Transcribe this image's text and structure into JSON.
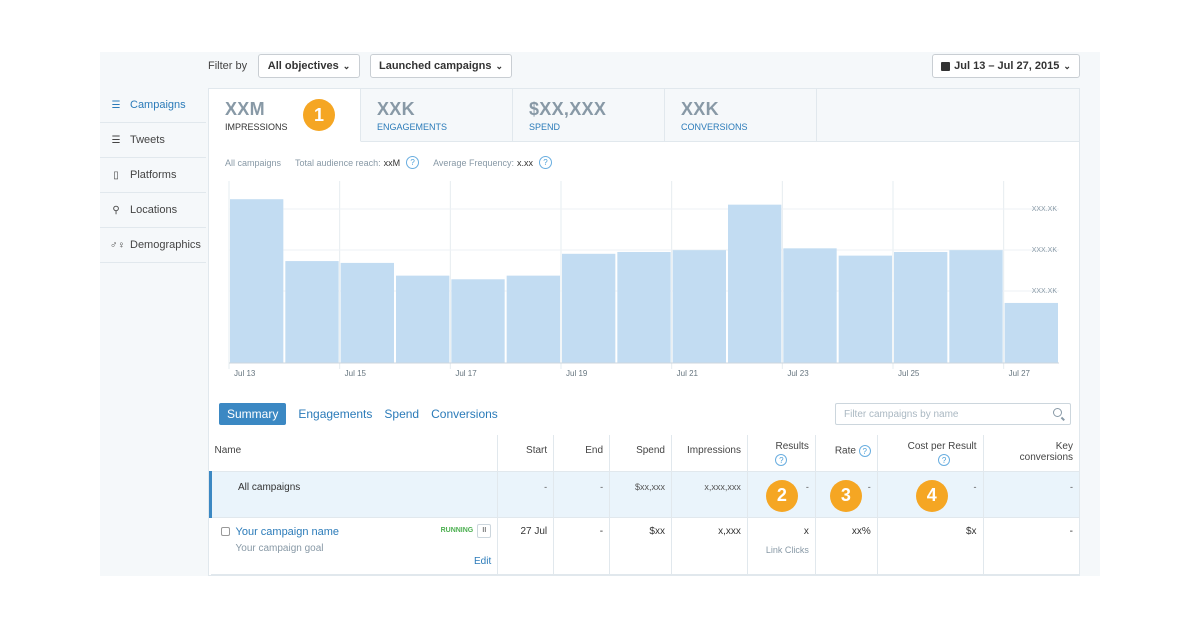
{
  "filter": {
    "label": "Filter by",
    "objectives": "All objectives",
    "campaigns": "Launched campaigns",
    "date_range": "Jul 13 – Jul 27, 2015"
  },
  "sidebar": {
    "items": [
      {
        "label": "Campaigns",
        "icon": "list-icon"
      },
      {
        "label": "Tweets",
        "icon": "list-icon"
      },
      {
        "label": "Platforms",
        "icon": "phone-icon"
      },
      {
        "label": "Locations",
        "icon": "pin-icon"
      },
      {
        "label": "Demographics",
        "icon": "gender-icon"
      }
    ]
  },
  "metrics": [
    {
      "value": "XXM",
      "label": "IMPRESSIONS"
    },
    {
      "value": "XXK",
      "label": "ENGAGEMENTS"
    },
    {
      "value": "$XX,XXX",
      "label": "SPEND"
    },
    {
      "value": "XXK",
      "label": "CONVERSIONS"
    }
  ],
  "badges": [
    "1",
    "2",
    "3",
    "4"
  ],
  "info": {
    "scope": "All campaigns",
    "reach_label": "Total audience reach:",
    "reach_value": "xxM",
    "freq_label": "Average Frequency:",
    "freq_value": "x.xx",
    "help": "?"
  },
  "chart_data": {
    "type": "bar",
    "categories": [
      "Jul 13",
      "Jul 14",
      "Jul 15",
      "Jul 16",
      "Jul 17",
      "Jul 18",
      "Jul 19",
      "Jul 20",
      "Jul 21",
      "Jul 22",
      "Jul 23",
      "Jul 24",
      "Jul 25",
      "Jul 26",
      "Jul 27"
    ],
    "values": [
      0.9,
      0.56,
      0.55,
      0.48,
      0.46,
      0.48,
      0.6,
      0.61,
      0.62,
      0.87,
      0.63,
      0.59,
      0.61,
      0.62,
      0.33
    ],
    "x_tick_labels": [
      "Jul 13",
      "Jul 15",
      "Jul 17",
      "Jul 19",
      "Jul 21",
      "Jul 23",
      "Jul 25",
      "Jul 27"
    ],
    "y_tick_labels": [
      "XXX.XK",
      "XXX.XK",
      "XXX.XK"
    ],
    "ylim": [
      0,
      1
    ],
    "grid": true,
    "color": "#c2dcf2",
    "xlabel": "",
    "ylabel": ""
  },
  "subtabs": [
    "Summary",
    "Engagements",
    "Spend",
    "Conversions"
  ],
  "search": {
    "placeholder": "Filter campaigns by name"
  },
  "table": {
    "headers": {
      "name": "Name",
      "start": "Start",
      "end": "End",
      "spend": "Spend",
      "impressions": "Impressions",
      "results": "Results",
      "rate": "Rate",
      "cpr": "Cost per Result",
      "key_1": "Key",
      "key_2": "conversions"
    },
    "all_row": {
      "name": "All campaigns",
      "start": "-",
      "end": "-",
      "spend": "$xx,xxx",
      "impressions": "x,xxx,xxx",
      "results": "-",
      "rate": "-",
      "cpr": "-",
      "key": "-"
    },
    "campaign_row": {
      "name": "Your campaign name",
      "goal": "Your campaign goal",
      "status": "RUNNING",
      "pause": "II",
      "edit": "Edit",
      "start": "27 Jul",
      "end": "-",
      "spend": "$xx",
      "impressions": "x,xxx",
      "results": "x",
      "results_sub": "Link Clicks",
      "rate": "xx%",
      "cpr": "$x",
      "key": "-"
    }
  }
}
